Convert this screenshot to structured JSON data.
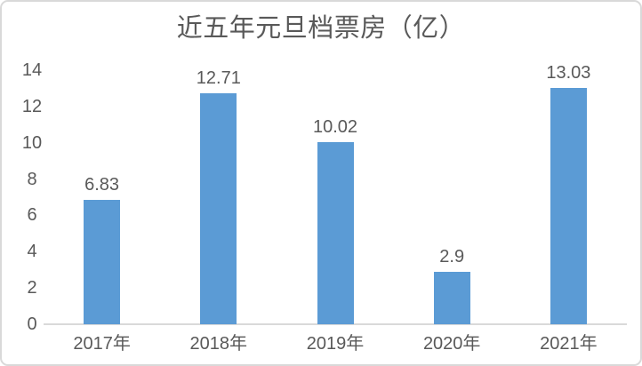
{
  "chart_data": {
    "type": "bar",
    "title": "近五年元旦档票房（亿）",
    "categories": [
      "2017年",
      "2018年",
      "2019年",
      "2020年",
      "2021年"
    ],
    "values": [
      6.83,
      12.71,
      10.02,
      2.9,
      13.03
    ],
    "value_labels": [
      "6.83",
      "12.71",
      "10.02",
      "2.9",
      "13.03"
    ],
    "xlabel": "",
    "ylabel": "",
    "ylim": [
      0,
      14
    ],
    "yticks": [
      0,
      2,
      4,
      6,
      8,
      10,
      12,
      14
    ],
    "grid": false,
    "legend": "none",
    "colors": {
      "bar": "#5b9bd5",
      "text": "#595959",
      "axis_line": "#d9d9d9",
      "card_border": "#d9d9d9",
      "background": "#ffffff"
    }
  }
}
